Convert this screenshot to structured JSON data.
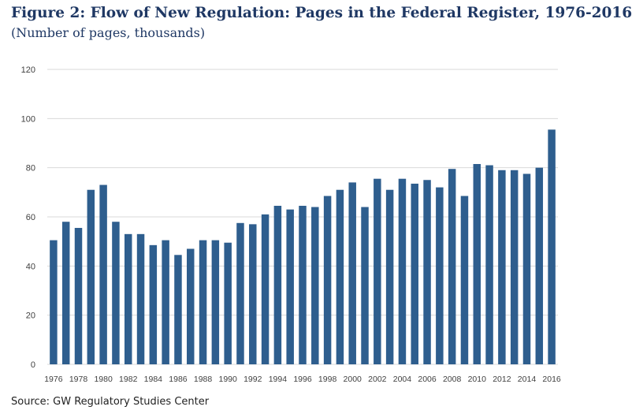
{
  "title": "Figure 2: Flow of New Regulation: Pages in the Federal Register, 1976-2016",
  "subtitle": "(Number of pages, thousands)",
  "source": "Source: GW Regulatory Studies Center",
  "colors": {
    "bar": "#2e5e8e",
    "grid": "#d9d9d9",
    "tick_text": "#404040"
  },
  "chart_data": {
    "type": "bar",
    "title": "Figure 2: Flow of New Regulation: Pages in the Federal Register, 1976-2016",
    "subtitle": "(Number of pages, thousands)",
    "xlabel": "",
    "ylabel": "",
    "ylim": [
      0,
      120
    ],
    "yticks": [
      0,
      20,
      40,
      60,
      80,
      100,
      120
    ],
    "grid": true,
    "categories": [
      "1976",
      "1977",
      "1978",
      "1979",
      "1980",
      "1981",
      "1982",
      "1983",
      "1984",
      "1985",
      "1986",
      "1987",
      "1988",
      "1989",
      "1990",
      "1991",
      "1992",
      "1993",
      "1994",
      "1995",
      "1996",
      "1997",
      "1998",
      "1999",
      "2000",
      "2001",
      "2002",
      "2003",
      "2004",
      "2005",
      "2006",
      "2007",
      "2008",
      "2009",
      "2010",
      "2011",
      "2012",
      "2013",
      "2014",
      "2015",
      "2016"
    ],
    "xtick_labels": [
      "1976",
      "1978",
      "1980",
      "1982",
      "1984",
      "1986",
      "1988",
      "1990",
      "1992",
      "1994",
      "1996",
      "1998",
      "2000",
      "2002",
      "2004",
      "2006",
      "2008",
      "2010",
      "2012",
      "2014",
      "2016"
    ],
    "values": [
      50.5,
      58,
      55.5,
      71,
      73,
      58,
      53,
      53,
      48.5,
      50.5,
      44.5,
      47,
      50.5,
      50.5,
      49.5,
      57.5,
      57,
      61,
      64.5,
      63,
      64.5,
      64,
      68.5,
      71,
      74,
      64,
      75.5,
      71,
      75.5,
      73.5,
      75,
      72,
      79.5,
      68.5,
      81.5,
      81,
      79,
      79,
      77.5,
      80,
      95.5
    ]
  }
}
